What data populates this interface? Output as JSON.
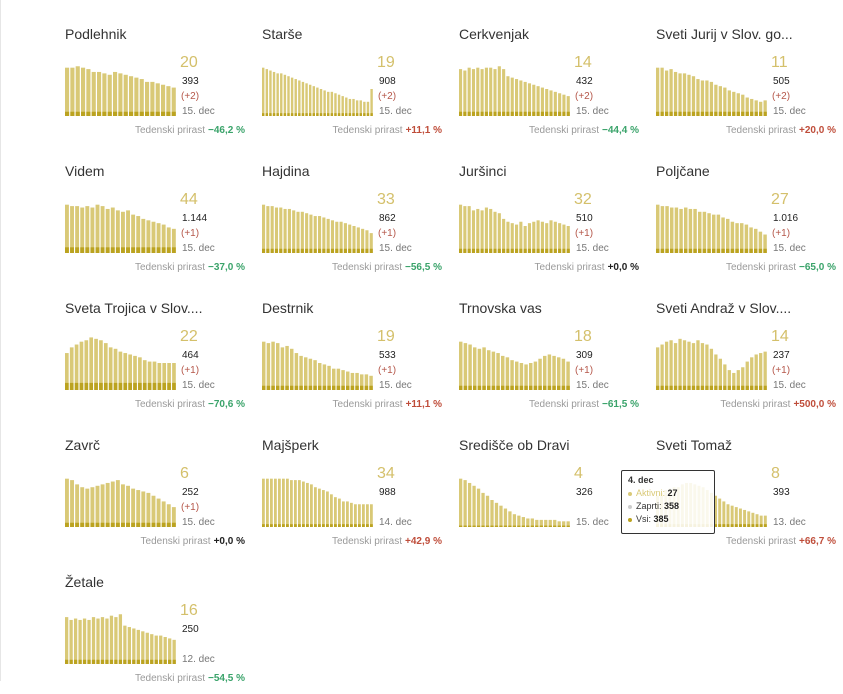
{
  "colors": {
    "active": "#d9c977",
    "dark": "#bba320",
    "big_number": "#d4c06b",
    "increase": "#bf4d3a",
    "decrease": "#3aa36a"
  },
  "growth_label": "Tedenski prirast",
  "chart_data": [
    {
      "type": "bar",
      "name": "Podlehnik",
      "big": "20",
      "total": "393",
      "delta": "(+2)",
      "date": "15. dec",
      "growth": "−46,2 %",
      "trend": "neg",
      "values": [
        34,
        34,
        35,
        34,
        33,
        31,
        31,
        30,
        29,
        31,
        30,
        29,
        28,
        27,
        26,
        24,
        24,
        23,
        22,
        21,
        20
      ],
      "dark": [
        3,
        3,
        3,
        3,
        3,
        3,
        3,
        3,
        3,
        3,
        3,
        3,
        3,
        3,
        3,
        3,
        3,
        3,
        3,
        3,
        3
      ]
    },
    {
      "type": "bar",
      "name": "Starše",
      "big": "19",
      "total": "908",
      "delta": "(+2)",
      "date": "15. dec",
      "growth": "+11,1 %",
      "trend": "pos",
      "values": [
        34,
        33,
        32,
        31,
        30,
        30,
        29,
        28,
        27,
        26,
        25,
        24,
        23,
        22,
        21,
        20,
        19,
        18,
        17,
        17,
        16,
        15,
        14,
        13,
        12,
        12,
        11,
        11,
        10,
        10,
        19
      ],
      "dark": [
        2,
        2,
        2,
        2,
        2,
        2,
        2,
        2,
        2,
        2,
        2,
        2,
        2,
        2,
        2,
        2,
        2,
        2,
        2,
        2,
        2,
        2,
        2,
        2,
        2,
        2,
        2,
        2,
        2,
        2,
        2
      ]
    },
    {
      "type": "bar",
      "name": "Cerkvenjak",
      "big": "14",
      "total": "432",
      "delta": "(+2)",
      "date": "15. dec",
      "growth": "−44,4 %",
      "trend": "neg",
      "values": [
        33,
        32,
        34,
        33,
        34,
        33,
        34,
        34,
        33,
        35,
        33,
        28,
        27,
        26,
        25,
        24,
        23,
        22,
        21,
        20,
        19,
        18,
        17,
        16,
        15,
        14
      ],
      "dark": [
        3,
        3,
        3,
        3,
        3,
        3,
        3,
        3,
        3,
        3,
        3,
        3,
        3,
        3,
        3,
        3,
        3,
        3,
        3,
        3,
        3,
        3,
        3,
        3,
        3,
        3
      ]
    },
    {
      "type": "bar",
      "name": "Sveti Jurij v Slov. go...",
      "big": "11",
      "total": "505",
      "delta": "(+2)",
      "date": "15. dec",
      "growth": "+20,0 %",
      "trend": "pos",
      "values": [
        34,
        34,
        32,
        33,
        31,
        30,
        30,
        29,
        28,
        26,
        25,
        25,
        24,
        22,
        21,
        20,
        18,
        17,
        16,
        15,
        13,
        12,
        11,
        10,
        11
      ],
      "dark": [
        3,
        3,
        3,
        3,
        3,
        3,
        3,
        3,
        3,
        3,
        3,
        3,
        3,
        3,
        3,
        3,
        3,
        3,
        3,
        3,
        3,
        3,
        3,
        3,
        3
      ]
    },
    {
      "type": "bar",
      "name": "Videm",
      "big": "44",
      "total": "1.144",
      "delta": "(+1)",
      "date": "15. dec",
      "growth": "−37,0 %",
      "trend": "neg",
      "values": [
        34,
        33,
        33,
        32,
        33,
        32,
        34,
        33,
        31,
        32,
        30,
        29,
        30,
        27,
        26,
        24,
        23,
        22,
        21,
        20,
        18,
        17
      ],
      "dark": [
        4,
        4,
        4,
        4,
        4,
        4,
        4,
        4,
        4,
        4,
        4,
        4,
        4,
        4,
        4,
        4,
        4,
        4,
        4,
        4,
        4,
        4
      ]
    },
    {
      "type": "bar",
      "name": "Hajdina",
      "big": "33",
      "total": "862",
      "delta": "(+1)",
      "date": "15. dec",
      "growth": "−56,5 %",
      "trend": "neg",
      "values": [
        34,
        33,
        33,
        32,
        32,
        31,
        31,
        30,
        29,
        29,
        28,
        27,
        26,
        26,
        25,
        24,
        23,
        22,
        22,
        21,
        20,
        19,
        18,
        17,
        16,
        14
      ],
      "dark": [
        3,
        3,
        3,
        3,
        3,
        3,
        3,
        3,
        3,
        3,
        3,
        3,
        3,
        3,
        3,
        3,
        3,
        3,
        3,
        3,
        3,
        3,
        3,
        3,
        3,
        3
      ]
    },
    {
      "type": "bar",
      "name": "Juršinci",
      "big": "32",
      "total": "510",
      "delta": "(+1)",
      "date": "15. dec",
      "growth": "+0,0 %",
      "trend": "zero",
      "values": [
        34,
        33,
        33,
        30,
        31,
        30,
        32,
        31,
        29,
        28,
        24,
        22,
        21,
        20,
        22,
        19,
        21,
        22,
        23,
        22,
        21,
        23,
        22,
        21,
        20,
        19
      ],
      "dark": [
        3,
        3,
        3,
        3,
        3,
        3,
        3,
        3,
        3,
        3,
        3,
        3,
        3,
        3,
        3,
        3,
        3,
        3,
        3,
        3,
        3,
        3,
        3,
        3,
        3,
        3
      ]
    },
    {
      "type": "bar",
      "name": "Poljčane",
      "big": "27",
      "total": "1.016",
      "delta": "(+1)",
      "date": "15. dec",
      "growth": "−65,0 %",
      "trend": "neg",
      "values": [
        34,
        33,
        33,
        32,
        32,
        31,
        32,
        31,
        31,
        29,
        29,
        28,
        27,
        27,
        25,
        24,
        22,
        21,
        21,
        20,
        18,
        17,
        15,
        13
      ],
      "dark": [
        3,
        3,
        3,
        3,
        3,
        3,
        3,
        3,
        3,
        3,
        3,
        3,
        3,
        3,
        3,
        3,
        3,
        3,
        3,
        3,
        3,
        3,
        3,
        3
      ]
    },
    {
      "type": "bar",
      "name": "Sveta Trojica v Slov....",
      "big": "22",
      "total": "464",
      "delta": "(+1)",
      "date": "15. dec",
      "growth": "−70,6 %",
      "trend": "neg",
      "values": [
        26,
        30,
        32,
        34,
        35,
        37,
        36,
        35,
        33,
        30,
        29,
        27,
        26,
        25,
        24,
        23,
        21,
        20,
        20,
        19,
        19,
        19,
        19
      ],
      "dark": [
        5,
        5,
        5,
        5,
        5,
        5,
        5,
        5,
        5,
        5,
        5,
        5,
        5,
        5,
        5,
        5,
        5,
        5,
        5,
        5,
        5,
        5,
        5
      ]
    },
    {
      "type": "bar",
      "name": "Destrnik",
      "big": "19",
      "total": "533",
      "delta": "(+1)",
      "date": "15. dec",
      "growth": "+11,1 %",
      "trend": "pos",
      "values": [
        34,
        33,
        34,
        33,
        30,
        31,
        29,
        26,
        24,
        23,
        22,
        21,
        19,
        18,
        17,
        15,
        15,
        14,
        13,
        12,
        12,
        11,
        11,
        10
      ],
      "dark": [
        3,
        3,
        3,
        3,
        3,
        3,
        3,
        3,
        3,
        3,
        3,
        3,
        3,
        3,
        3,
        3,
        3,
        3,
        3,
        3,
        3,
        3,
        3,
        3
      ]
    },
    {
      "type": "bar",
      "name": "Trnovska vas",
      "big": "18",
      "total": "309",
      "delta": "(+1)",
      "date": "15. dec",
      "growth": "−61,5 %",
      "trend": "neg",
      "values": [
        34,
        33,
        32,
        30,
        29,
        30,
        28,
        27,
        26,
        24,
        23,
        21,
        20,
        19,
        18,
        19,
        20,
        22,
        24,
        25,
        24,
        23,
        22,
        20
      ],
      "dark": [
        3,
        3,
        3,
        3,
        3,
        3,
        3,
        3,
        3,
        3,
        3,
        3,
        3,
        3,
        3,
        3,
        3,
        3,
        3,
        3,
        3,
        3,
        3,
        3
      ]
    },
    {
      "type": "bar",
      "name": "Sveti Andraž v Slov....",
      "big": "14",
      "total": "237",
      "delta": "(+1)",
      "date": "15. dec",
      "growth": "+500,0 %",
      "trend": "pos",
      "values": [
        30,
        32,
        34,
        35,
        33,
        36,
        35,
        34,
        33,
        35,
        33,
        32,
        29,
        25,
        22,
        18,
        14,
        12,
        14,
        16,
        20,
        23,
        25,
        26,
        27
      ],
      "dark": [
        3,
        3,
        3,
        3,
        3,
        3,
        3,
        3,
        3,
        3,
        3,
        3,
        3,
        3,
        3,
        3,
        3,
        3,
        3,
        3,
        3,
        3,
        3,
        3,
        3
      ]
    },
    {
      "type": "bar",
      "name": "Zavrč",
      "big": "6",
      "total": "252",
      "delta": "(+1)",
      "date": "15. dec",
      "growth": "+0,0 %",
      "trend": "zero",
      "values": [
        34,
        33,
        30,
        28,
        27,
        28,
        29,
        30,
        31,
        32,
        33,
        30,
        29,
        27,
        26,
        25,
        24,
        22,
        20,
        18,
        16,
        14
      ],
      "dark": [
        3,
        3,
        3,
        3,
        3,
        3,
        3,
        3,
        3,
        3,
        3,
        3,
        3,
        3,
        3,
        3,
        3,
        3,
        3,
        3,
        3,
        3
      ]
    },
    {
      "type": "bar",
      "name": "Majšperk",
      "big": "34",
      "total": "988",
      "delta": "",
      "date": "14. dec",
      "growth": "+42,9 %",
      "trend": "pos",
      "values": [
        34,
        34,
        34,
        34,
        34,
        34,
        34,
        33,
        33,
        33,
        32,
        31,
        30,
        28,
        27,
        26,
        25,
        23,
        21,
        20,
        18,
        18,
        17,
        16,
        16,
        16,
        16,
        16
      ],
      "dark": [
        2,
        2,
        2,
        2,
        2,
        2,
        2,
        2,
        2,
        2,
        2,
        2,
        2,
        2,
        2,
        2,
        2,
        2,
        2,
        2,
        2,
        2,
        2,
        2,
        2,
        2,
        2,
        2
      ]
    },
    {
      "type": "bar",
      "name": "Središče ob Dravi",
      "big": "4",
      "total": "326",
      "delta": "",
      "date": "15. dec",
      "growth": "",
      "trend": "zero",
      "values": [
        34,
        33,
        31,
        29,
        27,
        24,
        22,
        19,
        17,
        15,
        13,
        11,
        9,
        8,
        7,
        6,
        6,
        5,
        5,
        5,
        5,
        5,
        4,
        4,
        4
      ],
      "dark": [
        1,
        1,
        1,
        1,
        1,
        1,
        1,
        1,
        1,
        1,
        1,
        1,
        1,
        1,
        1,
        1,
        1,
        1,
        1,
        1,
        1,
        1,
        1,
        1,
        1
      ]
    },
    {
      "type": "bar",
      "name": "Sveti Tomaž",
      "big": "8",
      "total": "393",
      "delta": "",
      "date": "13. dec",
      "growth": "+66,7 %",
      "trend": "pos",
      "values": [
        22,
        24,
        26,
        27,
        28,
        28,
        30,
        31,
        31,
        30,
        29,
        28,
        26,
        24,
        22,
        20,
        18,
        16,
        15,
        14,
        13,
        12,
        11,
        10,
        9,
        8,
        8
      ],
      "dark": [
        2,
        2,
        2,
        2,
        2,
        2,
        2,
        2,
        2,
        2,
        2,
        2,
        2,
        2,
        2,
        2,
        2,
        2,
        2,
        2,
        2,
        2,
        2,
        2,
        2,
        2,
        2
      ]
    },
    {
      "type": "bar",
      "name": "Žetale",
      "big": "16",
      "total": "250",
      "delta": "",
      "date": "12. dec",
      "growth": "−54,5 %",
      "trend": "neg",
      "values": [
        33,
        31,
        32,
        31,
        32,
        31,
        33,
        32,
        33,
        32,
        34,
        33,
        35,
        27,
        26,
        25,
        24,
        23,
        22,
        21,
        20,
        20,
        19,
        18,
        17
      ],
      "dark": [
        3,
        3,
        3,
        3,
        3,
        3,
        3,
        3,
        3,
        3,
        3,
        3,
        3,
        3,
        3,
        3,
        3,
        3,
        3,
        3,
        3,
        3,
        3,
        3,
        3
      ]
    }
  ],
  "tooltip": {
    "title": "4. dec",
    "rows": [
      {
        "label": "Aktivni:",
        "value": "27",
        "color": "#d9c977"
      },
      {
        "label": "Zaprti:",
        "value": "358",
        "color": "#cccccc"
      },
      {
        "label": "Vsi:",
        "value": "385",
        "color": "#bba320"
      }
    ]
  }
}
